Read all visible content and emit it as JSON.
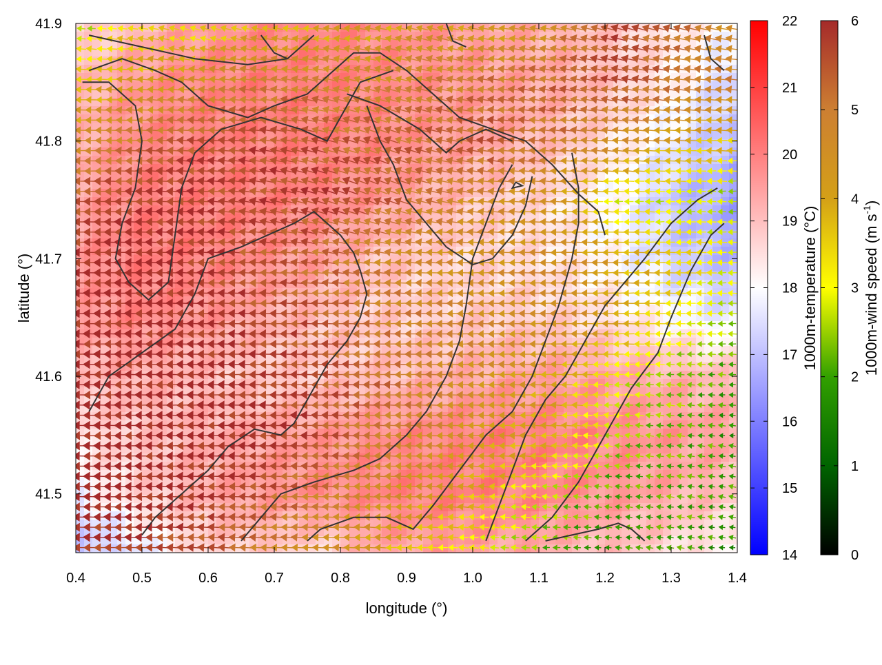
{
  "chart_data": {
    "type": "heatmap",
    "title": "",
    "xlabel": "longitude (°)",
    "ylabel": "latitude (°)",
    "xlim": [
      0.4,
      1.4
    ],
    "ylim": [
      41.45,
      41.9
    ],
    "x_ticks": [
      "0.4",
      "0.5",
      "0.6",
      "0.7",
      "0.8",
      "0.9",
      "1.0",
      "1.1",
      "1.2",
      "1.3",
      "1.4"
    ],
    "y_ticks": [
      "41.5",
      "41.6",
      "41.7",
      "41.8",
      "41.9"
    ],
    "grid": false,
    "temperature_colorbar": {
      "label": "1000m-temperature (°C)",
      "range": [
        14,
        22
      ],
      "ticks": [
        "14",
        "15",
        "16",
        "17",
        "18",
        "19",
        "20",
        "21",
        "22"
      ],
      "colors": [
        "#0000ff",
        "#ffffff",
        "#ff0000"
      ]
    },
    "windspeed_colorbar": {
      "label_main": "1000m-wind speed (m s",
      "label_sup": "-1",
      "label_end": ")",
      "range": [
        0,
        6
      ],
      "ticks": [
        "0",
        "1",
        "2",
        "3",
        "4",
        "5",
        "6"
      ],
      "colors": [
        "#000000",
        "#006400",
        "#32a000",
        "#ffff00",
        "#d4a017",
        "#cd7f32",
        "#a52a2a"
      ]
    },
    "temperature_field": [
      [
        18.5,
        19.0,
        19.5,
        19.8,
        19.9,
        19.8,
        19.6,
        19.4,
        19.2,
        18.8,
        18.3,
        18.0
      ],
      [
        19.0,
        19.6,
        19.9,
        20.0,
        20.0,
        19.9,
        19.7,
        19.5,
        19.3,
        18.9,
        18.2,
        17.2
      ],
      [
        19.2,
        19.8,
        20.0,
        20.0,
        20.0,
        19.9,
        19.6,
        19.4,
        19.0,
        18.4,
        17.6,
        16.8
      ],
      [
        19.4,
        20.0,
        20.0,
        20.0,
        19.9,
        19.6,
        19.2,
        18.8,
        18.5,
        18.0,
        17.0,
        16.5
      ],
      [
        19.6,
        20.0,
        20.0,
        19.8,
        19.5,
        19.0,
        18.7,
        18.6,
        18.4,
        18.0,
        17.2,
        16.8
      ],
      [
        19.5,
        19.9,
        19.7,
        19.4,
        19.0,
        18.8,
        18.7,
        18.8,
        18.7,
        18.4,
        18.0,
        17.5
      ],
      [
        19.0,
        19.3,
        19.1,
        18.8,
        18.9,
        19.0,
        19.2,
        19.4,
        19.5,
        19.4,
        19.2,
        19.0
      ],
      [
        18.5,
        18.8,
        19.2,
        19.4,
        19.6,
        19.8,
        19.9,
        20.0,
        20.0,
        19.8,
        19.6,
        19.4
      ],
      [
        17.8,
        18.6,
        19.2,
        19.6,
        19.8,
        19.9,
        20.0,
        20.0,
        19.9,
        19.6,
        19.3,
        18.9
      ],
      [
        16.8,
        17.5,
        18.5,
        18.8,
        18.5,
        19.3,
        19.5,
        19.4,
        19.2,
        18.9,
        18.5,
        18.0
      ]
    ],
    "wind_field": {
      "u": [
        [
          -2.5,
          -3.5,
          -3.0,
          -3.8,
          -3.8,
          -4.0,
          -4.2,
          -4.0,
          -4.5,
          -5.5,
          -5.0,
          -4.5
        ],
        [
          -3.5,
          -4.0,
          -4.5,
          -5.0,
          -4.8,
          -4.5,
          -4.8,
          -5.0,
          -5.2,
          -5.5,
          -5.0,
          -4.8
        ],
        [
          -4.5,
          -5.0,
          -5.5,
          -5.6,
          -5.2,
          -5.0,
          -5.2,
          -5.4,
          -5.0,
          -4.5,
          -4.0,
          -3.6
        ],
        [
          -5.5,
          -5.8,
          -5.8,
          -5.6,
          -5.5,
          -5.0,
          -4.8,
          -4.5,
          -4.2,
          -3.0,
          -2.8,
          -2.6
        ],
        [
          -5.8,
          -6.0,
          -5.8,
          -5.5,
          -5.2,
          -4.8,
          -4.5,
          -4.4,
          -4.6,
          -4.0,
          -3.5,
          -3.0
        ],
        [
          -6.0,
          -6.0,
          -5.9,
          -5.7,
          -5.4,
          -5.0,
          -4.8,
          -4.6,
          -4.6,
          -4.0,
          -3.2,
          -2.5
        ],
        [
          -6.0,
          -6.0,
          -6.0,
          -5.8,
          -5.6,
          -5.2,
          -4.8,
          -4.4,
          -4.0,
          -3.0,
          -2.4,
          -2.0
        ],
        [
          -6.0,
          -6.0,
          -6.0,
          -5.9,
          -5.6,
          -5.0,
          -4.6,
          -4.2,
          -3.8,
          -2.6,
          -2.2,
          -1.8
        ],
        [
          -6.0,
          -6.0,
          -5.9,
          -5.6,
          -5.0,
          -4.6,
          -4.2,
          -3.6,
          -2.6,
          -2.0,
          -2.2,
          -2.0
        ],
        [
          -5.8,
          -5.8,
          -5.4,
          -5.0,
          -4.4,
          -4.0,
          -3.4,
          -2.6,
          -2.2,
          -1.8,
          -2.0,
          -1.8
        ]
      ],
      "v": [
        [
          0.2,
          0.5,
          1.0,
          0.8,
          0.3,
          0.5,
          1.2,
          0.4,
          0.8,
          1.5,
          1.2,
          0.8
        ],
        [
          0.0,
          0.3,
          0.5,
          0.6,
          1.0,
          1.2,
          1.0,
          0.6,
          1.0,
          1.0,
          0.6,
          0.4
        ],
        [
          0.0,
          0.2,
          0.4,
          0.6,
          1.2,
          1.8,
          1.2,
          0.6,
          0.5,
          0.4,
          0.2,
          0.1
        ],
        [
          0.0,
          0.1,
          0.3,
          1.0,
          1.8,
          2.0,
          1.0,
          0.4,
          0.2,
          0.1,
          0.0,
          0.0
        ],
        [
          0.0,
          0.0,
          0.2,
          0.4,
          0.8,
          0.6,
          0.2,
          0.0,
          0.0,
          0.0,
          0.0,
          0.0
        ],
        [
          0.1,
          0.1,
          0.1,
          0.1,
          0.0,
          0.0,
          -0.1,
          -0.1,
          0.0,
          0.0,
          0.0,
          0.0
        ],
        [
          0.0,
          0.0,
          0.0,
          0.0,
          0.0,
          0.0,
          0.0,
          0.0,
          0.0,
          -0.2,
          0.2,
          0.0
        ],
        [
          0.0,
          0.0,
          0.0,
          0.0,
          0.1,
          0.2,
          0.1,
          0.0,
          0.2,
          0.4,
          0.3,
          0.2
        ],
        [
          0.0,
          0.0,
          0.1,
          0.2,
          0.3,
          0.2,
          0.2,
          0.4,
          0.4,
          0.2,
          0.3,
          0.4
        ],
        [
          0.1,
          0.2,
          0.3,
          0.3,
          0.2,
          0.1,
          0.2,
          0.2,
          0.0,
          0.2,
          0.3,
          0.2
        ]
      ]
    },
    "contours": [
      [
        [
          0.42,
          41.89
        ],
        [
          0.5,
          41.88
        ],
        [
          0.58,
          41.87
        ],
        [
          0.66,
          41.865
        ],
        [
          0.72,
          41.87
        ],
        [
          0.76,
          41.89
        ]
      ],
      [
        [
          0.42,
          41.86
        ],
        [
          0.47,
          41.87
        ],
        [
          0.52,
          41.86
        ],
        [
          0.56,
          41.85
        ],
        [
          0.6,
          41.83
        ],
        [
          0.66,
          41.82
        ],
        [
          0.7,
          41.83
        ],
        [
          0.75,
          41.84
        ],
        [
          0.79,
          41.86
        ],
        [
          0.82,
          41.875
        ],
        [
          0.86,
          41.875
        ],
        [
          0.9,
          41.86
        ],
        [
          0.94,
          41.84
        ],
        [
          0.98,
          41.82
        ],
        [
          1.03,
          41.81
        ],
        [
          1.08,
          41.8
        ],
        [
          1.12,
          41.78
        ],
        [
          1.16,
          41.755
        ],
        [
          1.19,
          41.74
        ],
        [
          1.2,
          41.72
        ]
      ],
      [
        [
          0.41,
          41.85
        ],
        [
          0.45,
          41.85
        ],
        [
          0.49,
          41.83
        ],
        [
          0.5,
          41.8
        ],
        [
          0.49,
          41.76
        ],
        [
          0.47,
          41.73
        ],
        [
          0.46,
          41.7
        ],
        [
          0.48,
          41.68
        ],
        [
          0.51,
          41.665
        ],
        [
          0.54,
          41.68
        ],
        [
          0.55,
          41.72
        ],
        [
          0.56,
          41.76
        ],
        [
          0.58,
          41.79
        ],
        [
          0.62,
          41.81
        ],
        [
          0.68,
          41.82
        ],
        [
          0.74,
          41.81
        ],
        [
          0.78,
          41.8
        ],
        [
          0.8,
          41.82
        ],
        [
          0.83,
          41.85
        ],
        [
          0.88,
          41.86
        ]
      ],
      [
        [
          0.81,
          41.84
        ],
        [
          0.86,
          41.83
        ],
        [
          0.92,
          41.81
        ],
        [
          0.96,
          41.79
        ],
        [
          0.98,
          41.8
        ],
        [
          1.02,
          41.81
        ],
        [
          1.06,
          41.8
        ]
      ],
      [
        [
          0.84,
          41.83
        ],
        [
          0.86,
          41.8
        ],
        [
          0.88,
          41.78
        ],
        [
          0.9,
          41.75
        ],
        [
          0.93,
          41.73
        ],
        [
          0.96,
          41.71
        ],
        [
          1.0,
          41.695
        ],
        [
          1.03,
          41.7
        ],
        [
          1.06,
          41.72
        ],
        [
          1.08,
          41.745
        ],
        [
          1.09,
          41.77
        ]
      ],
      [
        [
          0.42,
          41.57
        ],
        [
          0.45,
          41.6
        ],
        [
          0.5,
          41.62
        ],
        [
          0.55,
          41.64
        ],
        [
          0.58,
          41.67
        ],
        [
          0.6,
          41.7
        ],
        [
          0.65,
          41.71
        ],
        [
          0.69,
          41.72
        ],
        [
          0.73,
          41.73
        ],
        [
          0.76,
          41.74
        ],
        [
          0.78,
          41.73
        ],
        [
          0.8,
          41.72
        ],
        [
          0.82,
          41.705
        ],
        [
          0.83,
          41.69
        ],
        [
          0.84,
          41.67
        ],
        [
          0.83,
          41.65
        ],
        [
          0.81,
          41.63
        ],
        [
          0.78,
          41.61
        ],
        [
          0.75,
          41.58
        ],
        [
          0.73,
          41.56
        ],
        [
          0.71,
          41.55
        ],
        [
          0.67,
          41.555
        ],
        [
          0.63,
          41.54
        ],
        [
          0.6,
          41.52
        ],
        [
          0.56,
          41.5
        ],
        [
          0.52,
          41.48
        ],
        [
          0.5,
          41.465
        ]
      ],
      [
        [
          0.65,
          41.46
        ],
        [
          0.68,
          41.48
        ],
        [
          0.71,
          41.5
        ],
        [
          0.76,
          41.51
        ],
        [
          0.82,
          41.52
        ],
        [
          0.86,
          41.53
        ],
        [
          0.9,
          41.55
        ],
        [
          0.93,
          41.57
        ],
        [
          0.96,
          41.6
        ],
        [
          0.98,
          41.63
        ],
        [
          0.99,
          41.66
        ],
        [
          1.0,
          41.7
        ],
        [
          1.02,
          41.73
        ],
        [
          1.04,
          41.76
        ],
        [
          1.06,
          41.78
        ]
      ],
      [
        [
          0.75,
          41.46
        ],
        [
          0.77,
          41.47
        ],
        [
          0.82,
          41.48
        ],
        [
          0.87,
          41.48
        ],
        [
          0.91,
          41.47
        ],
        [
          0.94,
          41.49
        ],
        [
          0.98,
          41.52
        ],
        [
          1.02,
          41.55
        ],
        [
          1.06,
          41.57
        ],
        [
          1.09,
          41.6
        ],
        [
          1.11,
          41.63
        ],
        [
          1.13,
          41.66
        ],
        [
          1.15,
          41.7
        ],
        [
          1.16,
          41.73
        ],
        [
          1.16,
          41.76
        ],
        [
          1.15,
          41.79
        ]
      ],
      [
        [
          1.02,
          41.46
        ],
        [
          1.04,
          41.49
        ],
        [
          1.06,
          41.52
        ],
        [
          1.08,
          41.55
        ],
        [
          1.11,
          41.58
        ],
        [
          1.14,
          41.6
        ],
        [
          1.17,
          41.63
        ],
        [
          1.2,
          41.66
        ],
        [
          1.23,
          41.68
        ],
        [
          1.26,
          41.7
        ],
        [
          1.3,
          41.73
        ],
        [
          1.34,
          41.75
        ],
        [
          1.37,
          41.76
        ]
      ],
      [
        [
          1.08,
          41.46
        ],
        [
          1.12,
          41.48
        ],
        [
          1.16,
          41.51
        ],
        [
          1.2,
          41.55
        ],
        [
          1.24,
          41.59
        ],
        [
          1.28,
          41.62
        ],
        [
          1.3,
          41.65
        ],
        [
          1.33,
          41.69
        ],
        [
          1.36,
          41.72
        ],
        [
          1.38,
          41.73
        ]
      ],
      [
        [
          1.11,
          41.46
        ],
        [
          1.15,
          41.465
        ],
        [
          1.19,
          41.47
        ],
        [
          1.22,
          41.475
        ],
        [
          1.24,
          41.47
        ],
        [
          1.26,
          41.46
        ]
      ],
      [
        [
          1.35,
          41.89
        ],
        [
          1.36,
          41.87
        ],
        [
          1.38,
          41.86
        ]
      ],
      [
        [
          0.68,
          41.89
        ],
        [
          0.7,
          41.875
        ],
        [
          0.72,
          41.87
        ]
      ],
      [
        [
          0.96,
          41.9
        ],
        [
          0.97,
          41.885
        ],
        [
          0.99,
          41.88
        ]
      ],
      [
        [
          1.065,
          41.765
        ],
        [
          1.075,
          41.762
        ],
        [
          1.06,
          41.76
        ],
        [
          1.065,
          41.765
        ]
      ]
    ]
  }
}
